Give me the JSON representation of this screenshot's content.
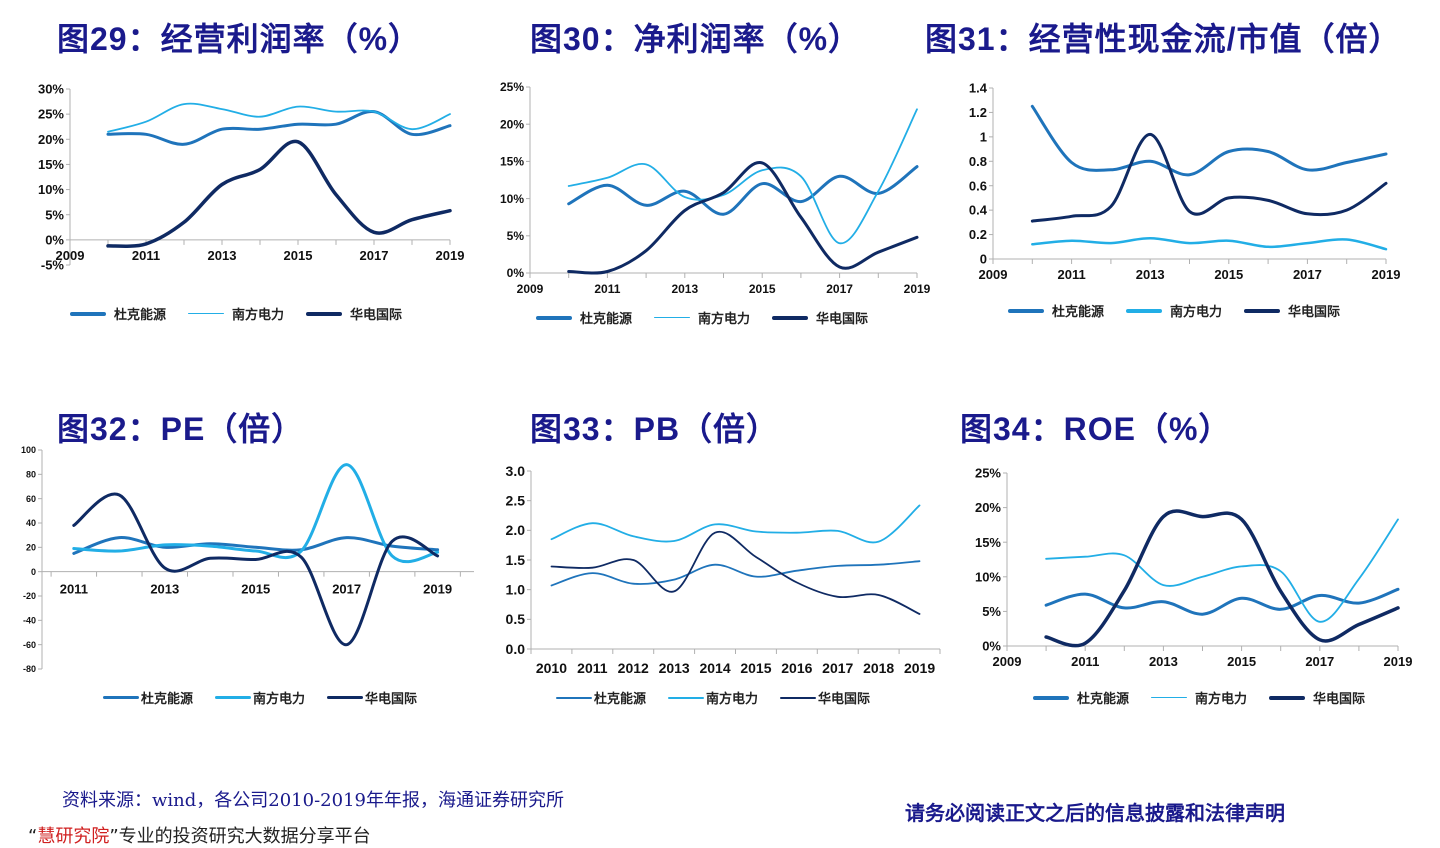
{
  "series_names": [
    "杜克能源",
    "南方电力",
    "华电国际"
  ],
  "series_colors": [
    "#1f74bb",
    "#22aee6",
    "#0f2a63"
  ],
  "chart_data": [
    {
      "id": "fig29",
      "type": "line",
      "title": "图29：经营利润率（%）",
      "xlabel": "",
      "ylabel": "",
      "x": [
        2010,
        2011,
        2012,
        2013,
        2014,
        2015,
        2016,
        2017,
        2018,
        2019
      ],
      "xlim": [
        2009,
        2019
      ],
      "xticks": [
        "2009",
        "2011",
        "2013",
        "2015",
        "2017",
        "2019"
      ],
      "ylim": [
        -5,
        30
      ],
      "yticks": [
        "-5%",
        "0%",
        "5%",
        "10%",
        "15%",
        "20%",
        "25%",
        "30%"
      ],
      "grid": false,
      "legend": "bottom",
      "series": [
        {
          "name": "杜克能源",
          "values": [
            21,
            21,
            19,
            22,
            22,
            23,
            23,
            25.5,
            21,
            22.7
          ]
        },
        {
          "name": "南方电力",
          "values": [
            21.5,
            23.5,
            27,
            26,
            24.5,
            26.5,
            25.5,
            25.5,
            22,
            25
          ]
        },
        {
          "name": "华电国际",
          "values": [
            -1.2,
            -0.8,
            3.5,
            11,
            14,
            19.5,
            9,
            1.5,
            4,
            5.8
          ]
        }
      ]
    },
    {
      "id": "fig30",
      "type": "line",
      "title": "图30：净利润率（%）",
      "xlabel": "",
      "ylabel": "",
      "x": [
        2010,
        2011,
        2012,
        2013,
        2014,
        2015,
        2016,
        2017,
        2018,
        2019
      ],
      "xlim": [
        2009,
        2019
      ],
      "xticks": [
        "2009",
        "2011",
        "2013",
        "2015",
        "2017",
        "2019"
      ],
      "ylim": [
        0,
        25
      ],
      "yticks": [
        "0%",
        "5%",
        "10%",
        "15%",
        "20%",
        "25%"
      ],
      "grid": false,
      "legend": "bottom",
      "series": [
        {
          "name": "杜克能源",
          "values": [
            9.3,
            11.8,
            9.1,
            11,
            7.9,
            12,
            9.6,
            13,
            10.7,
            14.3
          ]
        },
        {
          "name": "南方电力",
          "values": [
            11.7,
            12.8,
            14.6,
            10.2,
            10.5,
            13.8,
            13,
            4,
            11,
            22
          ]
        },
        {
          "name": "华电国际",
          "values": [
            0.2,
            0.2,
            3,
            8.4,
            10.8,
            14.8,
            7.5,
            0.8,
            2.8,
            4.8
          ]
        }
      ]
    },
    {
      "id": "fig31",
      "type": "line",
      "title": "图31：经营性现金流/市值（倍）",
      "xlabel": "",
      "ylabel": "",
      "x": [
        2010,
        2011,
        2012,
        2013,
        2014,
        2015,
        2016,
        2017,
        2018,
        2019
      ],
      "xlim": [
        2009,
        2019
      ],
      "xticks": [
        "2009",
        "2011",
        "2013",
        "2015",
        "2017",
        "2019"
      ],
      "ylim": [
        0,
        1.4
      ],
      "yticks": [
        "0",
        "0.2",
        "0.4",
        "0.6",
        "0.8",
        "1",
        "1.2",
        "1.4"
      ],
      "grid": false,
      "legend": "bottom",
      "series": [
        {
          "name": "杜克能源",
          "values": [
            1.25,
            0.79,
            0.73,
            0.8,
            0.69,
            0.88,
            0.88,
            0.73,
            0.79,
            0.86
          ]
        },
        {
          "name": "南方电力",
          "values": [
            0.12,
            0.15,
            0.13,
            0.17,
            0.13,
            0.15,
            0.1,
            0.13,
            0.16,
            0.08
          ]
        },
        {
          "name": "华电国际",
          "values": [
            0.31,
            0.35,
            0.43,
            1.02,
            0.39,
            0.5,
            0.48,
            0.37,
            0.4,
            0.62
          ]
        }
      ]
    },
    {
      "id": "fig32",
      "type": "line",
      "title": "图32：PE（倍）",
      "xlabel": "",
      "ylabel": "",
      "x": [
        2011,
        2012,
        2013,
        2014,
        2015,
        2016,
        2017,
        2018,
        2019
      ],
      "xlim": [
        2010.3,
        2019.8
      ],
      "xticks": [
        "2011",
        "2013",
        "2015",
        "2017",
        "2019"
      ],
      "ylim": [
        -80,
        100
      ],
      "yticks": [
        "-80",
        "-60",
        "-40",
        "-20",
        "0",
        "20",
        "40",
        "60",
        "80",
        "100"
      ],
      "grid": false,
      "legend": "bottom",
      "series": [
        {
          "name": "杜克能源",
          "values": [
            15,
            28,
            20,
            23,
            20,
            18,
            28,
            21,
            18
          ]
        },
        {
          "name": "南方电力",
          "values": [
            19,
            17,
            22,
            21,
            17,
            17,
            88,
            13,
            16
          ]
        },
        {
          "name": "华电国际",
          "values": [
            38,
            63,
            3,
            11,
            10,
            12,
            -60,
            25,
            13
          ]
        }
      ]
    },
    {
      "id": "fig33",
      "type": "line",
      "title": "图33：PB（倍）",
      "xlabel": "",
      "ylabel": "",
      "x": [
        2010,
        2011,
        2012,
        2013,
        2014,
        2015,
        2016,
        2017,
        2018,
        2019
      ],
      "xlim": [
        2009.5,
        2019.5
      ],
      "xticks": [
        "2010",
        "2011",
        "2012",
        "2013",
        "2014",
        "2015",
        "2016",
        "2017",
        "2018",
        "2019"
      ],
      "ylim": [
        0,
        3
      ],
      "yticks": [
        "0.0",
        "0.5",
        "1.0",
        "1.5",
        "2.0",
        "2.5",
        "3.0"
      ],
      "grid": false,
      "legend": "bottom",
      "series": [
        {
          "name": "杜克能源",
          "values": [
            1.07,
            1.28,
            1.1,
            1.17,
            1.42,
            1.22,
            1.32,
            1.4,
            1.42,
            1.48
          ]
        },
        {
          "name": "南方电力",
          "values": [
            1.85,
            2.12,
            1.9,
            1.82,
            2.1,
            1.98,
            1.96,
            1.99,
            1.81,
            2.42
          ]
        },
        {
          "name": "华电国际",
          "values": [
            1.39,
            1.37,
            1.5,
            0.97,
            1.96,
            1.55,
            1.12,
            0.88,
            0.91,
            0.59
          ]
        }
      ]
    },
    {
      "id": "fig34",
      "type": "line",
      "title": "图34：ROE（%）",
      "xlabel": "",
      "ylabel": "",
      "x": [
        2010,
        2011,
        2012,
        2013,
        2014,
        2015,
        2016,
        2017,
        2018,
        2019
      ],
      "xlim": [
        2009,
        2019
      ],
      "xticks": [
        "2009",
        "2011",
        "2013",
        "2015",
        "2017",
        "2019"
      ],
      "ylim": [
        0,
        25
      ],
      "yticks": [
        "0%",
        "5%",
        "10%",
        "15%",
        "20%",
        "25%"
      ],
      "grid": false,
      "legend": "bottom",
      "series": [
        {
          "name": "杜克能源",
          "values": [
            5.9,
            7.5,
            5.5,
            6.4,
            4.6,
            6.9,
            5.3,
            7.3,
            6.2,
            8.2
          ]
        },
        {
          "name": "南方电力",
          "values": [
            12.6,
            12.9,
            13.1,
            8.8,
            10,
            11.5,
            10.8,
            3.5,
            9.7,
            18.3
          ]
        },
        {
          "name": "华电国际",
          "values": [
            1.3,
            0.4,
            8,
            18.7,
            18.7,
            18.3,
            7.9,
            0.9,
            3.1,
            5.5
          ]
        }
      ]
    }
  ],
  "footer": {
    "source": "资料来源：wind，各公司2010-2019年年报，海通证券研究所",
    "disclaimer": "请务必阅读正文之后的信息披露和法律声明",
    "cutoff_prefix": "“",
    "cutoff_red": "慧研究院",
    "cutoff_rest": "”专业的投资研究大数据分享平台"
  }
}
